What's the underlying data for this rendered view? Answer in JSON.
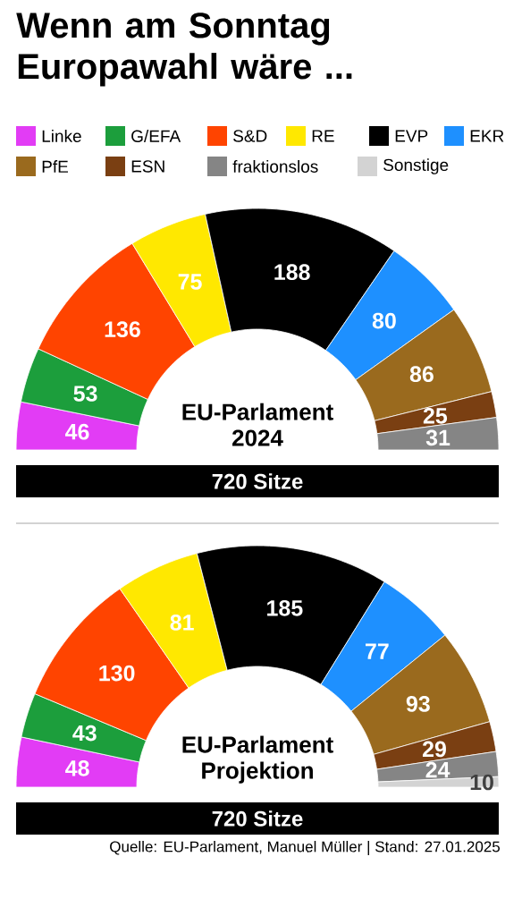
{
  "chart_data": [
    {
      "type": "donut",
      "title": "Wenn am Sonntag Europawahl wäre ...",
      "categories": [
        "Linke",
        "G/EFA",
        "S&D",
        "RE",
        "EVP",
        "EKR",
        "PfE",
        "ESN",
        "fraktionslos",
        "Sonstige"
      ],
      "values": [
        46,
        53,
        136,
        75,
        188,
        80,
        86,
        25,
        31,
        null
      ],
      "colors": [
        "#e23cf5",
        "#1c9e3c",
        "#ff4400",
        "#ffe800",
        "#000000",
        "#1e90ff",
        "#9a6a1e",
        "#7a3f12",
        "#858585",
        "#d3d3d3"
      ],
      "data_labels": true,
      "legend": "top",
      "annotations": [
        "EU-Parlament 2024",
        "720 Sitze"
      ]
    },
    {
      "type": "donut",
      "categories": [
        null,
        null,
        null,
        null,
        null,
        null,
        null,
        null,
        null,
        null
      ],
      "values": [
        48,
        43,
        130,
        81,
        185,
        77,
        93,
        29,
        24,
        10
      ],
      "colors": [
        "#e23cf5",
        "#1c9e3c",
        "#ff4400",
        "#ffe800",
        "#000000",
        "#1e90ff",
        "#9a6a1e",
        "#7a3f12",
        "#858585",
        "#d3d3d3"
      ],
      "data_labels": true,
      "annotations": [
        "EU-Parlament Projektion",
        "720 Sitze",
        "Quelle: EU-Parlament, Manuel Müller | Stand: 27.01.2025"
      ]
    }
  ]
}
